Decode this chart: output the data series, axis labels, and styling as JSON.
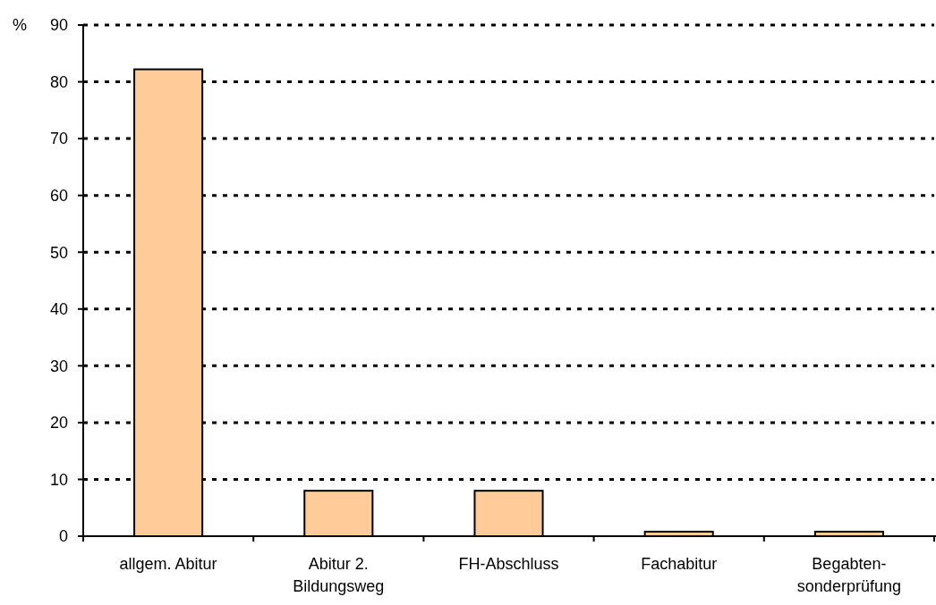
{
  "chart_data": {
    "type": "bar",
    "ylabel": "%",
    "categories": [
      "allgem. Abitur",
      "Abitur 2.\nBildungsweg",
      "FH-Abschluss",
      "Fachabitur",
      "Begabten-\nsonderprüfung"
    ],
    "values": [
      82.2,
      8.0,
      8.0,
      0.8,
      0.8
    ],
    "color": "#ffcc99",
    "ylim": [
      0,
      90
    ],
    "yticks": [
      0,
      10,
      20,
      30,
      40,
      50,
      60,
      70,
      80,
      90
    ],
    "grid": "y"
  }
}
